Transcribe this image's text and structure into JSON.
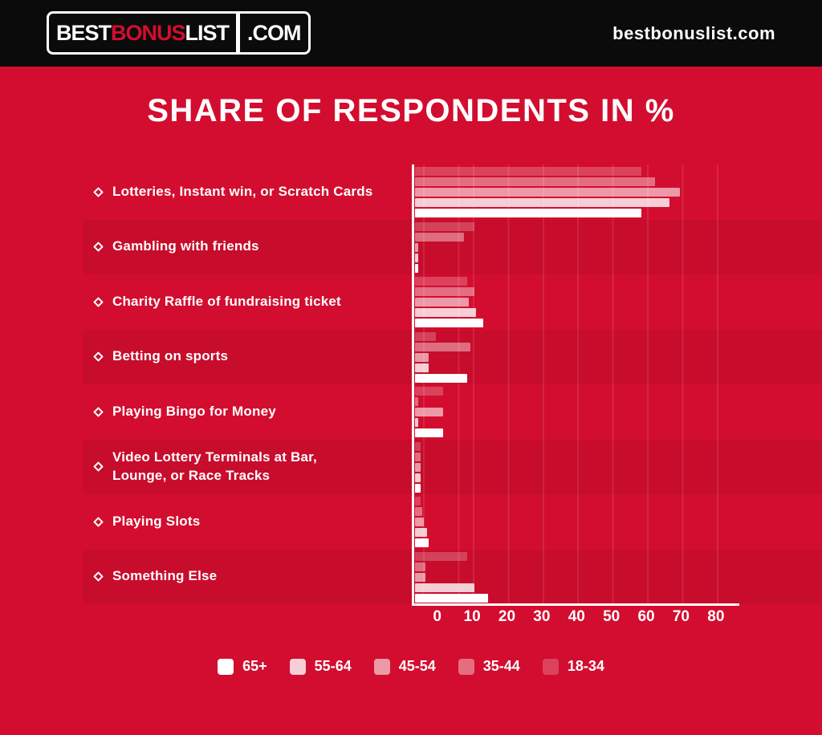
{
  "colors": {
    "background": "#d30d2f",
    "header_bg": "#0b0b0b",
    "text": "#ffffff",
    "accent_red": "#d30d2f",
    "band": "rgba(0,0,0,0.05)",
    "grid": "rgba(255,255,255,0.1)"
  },
  "header": {
    "logo": {
      "best": "BEST",
      "bonus": "BONUS",
      "list": "LIST",
      "dotcom": ".COM"
    },
    "site_url": "bestbonuslist.com"
  },
  "title": "SHARE OF RESPONDENTS IN %",
  "chart_data": {
    "type": "bar",
    "orientation": "horizontal",
    "title": "SHARE OF RESPONDENTS IN %",
    "x_ticks": [
      0,
      10,
      20,
      30,
      40,
      50,
      60,
      70,
      80
    ],
    "xlim": [
      0,
      88
    ],
    "grid": true,
    "legend_position": "bottom",
    "categories": [
      "Lotteries, Instant win, or Scratch Cards",
      "Gambling with friends",
      "Charity Raffle of fundraising ticket",
      "Betting on sports",
      "Playing Bingo for Money",
      "Video Lottery Terminals at Bar,\nLounge, or Race Tracks",
      "Playing Slots",
      "Something Else"
    ],
    "series": [
      {
        "name": "18-34",
        "color": "rgba(255,255,255,0.22)",
        "values": [
          65,
          17,
          15,
          6,
          8,
          1.5,
          1.5,
          15
        ]
      },
      {
        "name": "35-44",
        "color": "rgba(255,255,255,0.40)",
        "values": [
          69,
          14,
          17,
          16,
          1,
          1.5,
          2,
          3
        ]
      },
      {
        "name": "45-54",
        "color": "rgba(255,255,255,0.58)",
        "values": [
          76,
          1,
          15.5,
          4,
          8,
          1.5,
          2.5,
          3
        ]
      },
      {
        "name": "55-64",
        "color": "rgba(255,255,255,0.80)",
        "values": [
          73,
          1,
          17.5,
          4,
          1,
          1.5,
          3.5,
          17
        ]
      },
      {
        "name": "65+",
        "color": "#ffffff",
        "values": [
          65,
          1,
          19.5,
          15,
          8,
          1.5,
          4,
          21
        ]
      }
    ],
    "legend": [
      {
        "label": "65+",
        "color": "#ffffff"
      },
      {
        "label": "55-64",
        "color": "rgba(255,255,255,0.80)"
      },
      {
        "label": "45-54",
        "color": "rgba(255,255,255,0.58)"
      },
      {
        "label": "35-44",
        "color": "rgba(255,255,255,0.40)"
      },
      {
        "label": "18-34",
        "color": "rgba(255,255,255,0.22)"
      }
    ]
  }
}
